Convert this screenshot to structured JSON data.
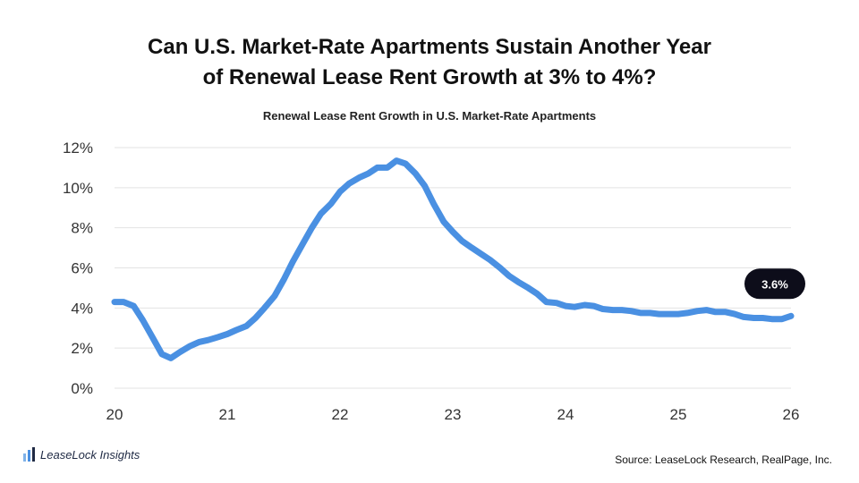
{
  "header": {
    "title_line1": "Can U.S. Market-Rate Apartments Sustain Another Year",
    "title_line2": "of Renewal Lease Rent Growth at 3% to 4%?",
    "subtitle": "Renewal Lease Rent Growth in U.S. Market-Rate Apartments"
  },
  "footer": {
    "brand": "LeaseLock Insights",
    "source": "Source: LeaseLock Research, RealPage, Inc."
  },
  "colors": {
    "line": "#4a90e2",
    "grid": "#e3e3e3",
    "callout": "#0d0d1a"
  },
  "chart_data": {
    "type": "line",
    "title": "Renewal Lease Rent Growth in U.S. Market-Rate Apartments",
    "xlabel": "",
    "ylabel": "",
    "xlim": [
      20,
      26
    ],
    "ylim": [
      0,
      12
    ],
    "x_ticks": [
      "20",
      "21",
      "22",
      "23",
      "24",
      "25",
      "26"
    ],
    "y_ticks": [
      "0%",
      "2%",
      "4%",
      "6%",
      "8%",
      "10%",
      "12%"
    ],
    "grid": true,
    "callout": "3.6%",
    "series": [
      {
        "x": [
          20.0,
          20.08,
          20.17,
          20.25,
          20.33,
          20.42,
          20.5,
          20.58,
          20.67,
          20.75,
          20.83,
          20.92,
          21.0,
          21.08,
          21.17,
          21.25,
          21.33,
          21.42,
          21.5,
          21.58,
          21.67,
          21.75,
          21.83,
          21.92,
          22.0,
          22.08,
          22.17,
          22.25,
          22.33,
          22.42,
          22.5,
          22.58,
          22.67,
          22.75,
          22.83,
          22.92,
          23.0,
          23.08,
          23.17,
          23.25,
          23.33,
          23.42,
          23.5,
          23.58,
          23.67,
          23.75,
          23.83,
          23.92,
          24.0,
          24.08,
          24.17,
          24.25,
          24.33,
          24.42,
          24.5,
          24.58,
          24.67,
          24.75,
          24.83,
          24.92,
          25.0,
          25.08,
          25.17,
          25.25,
          25.33,
          25.42,
          25.5,
          25.58,
          25.67,
          25.75,
          25.83,
          25.92,
          26.0
        ],
        "values": [
          4.3,
          4.3,
          4.1,
          3.4,
          2.6,
          1.7,
          1.5,
          1.8,
          2.1,
          2.3,
          2.4,
          2.55,
          2.7,
          2.9,
          3.1,
          3.5,
          4.0,
          4.6,
          5.4,
          6.3,
          7.2,
          8.0,
          8.7,
          9.2,
          9.8,
          10.2,
          10.5,
          10.7,
          11.0,
          11.0,
          11.35,
          11.2,
          10.7,
          10.1,
          9.2,
          8.3,
          7.8,
          7.35,
          7.0,
          6.7,
          6.4,
          6.0,
          5.6,
          5.3,
          5.0,
          4.7,
          4.3,
          4.25,
          4.1,
          4.05,
          4.15,
          4.1,
          3.95,
          3.9,
          3.9,
          3.85,
          3.75,
          3.75,
          3.7,
          3.7,
          3.7,
          3.75,
          3.85,
          3.9,
          3.8,
          3.8,
          3.7,
          3.55,
          3.5,
          3.5,
          3.45,
          3.45,
          3.6
        ]
      }
    ]
  }
}
